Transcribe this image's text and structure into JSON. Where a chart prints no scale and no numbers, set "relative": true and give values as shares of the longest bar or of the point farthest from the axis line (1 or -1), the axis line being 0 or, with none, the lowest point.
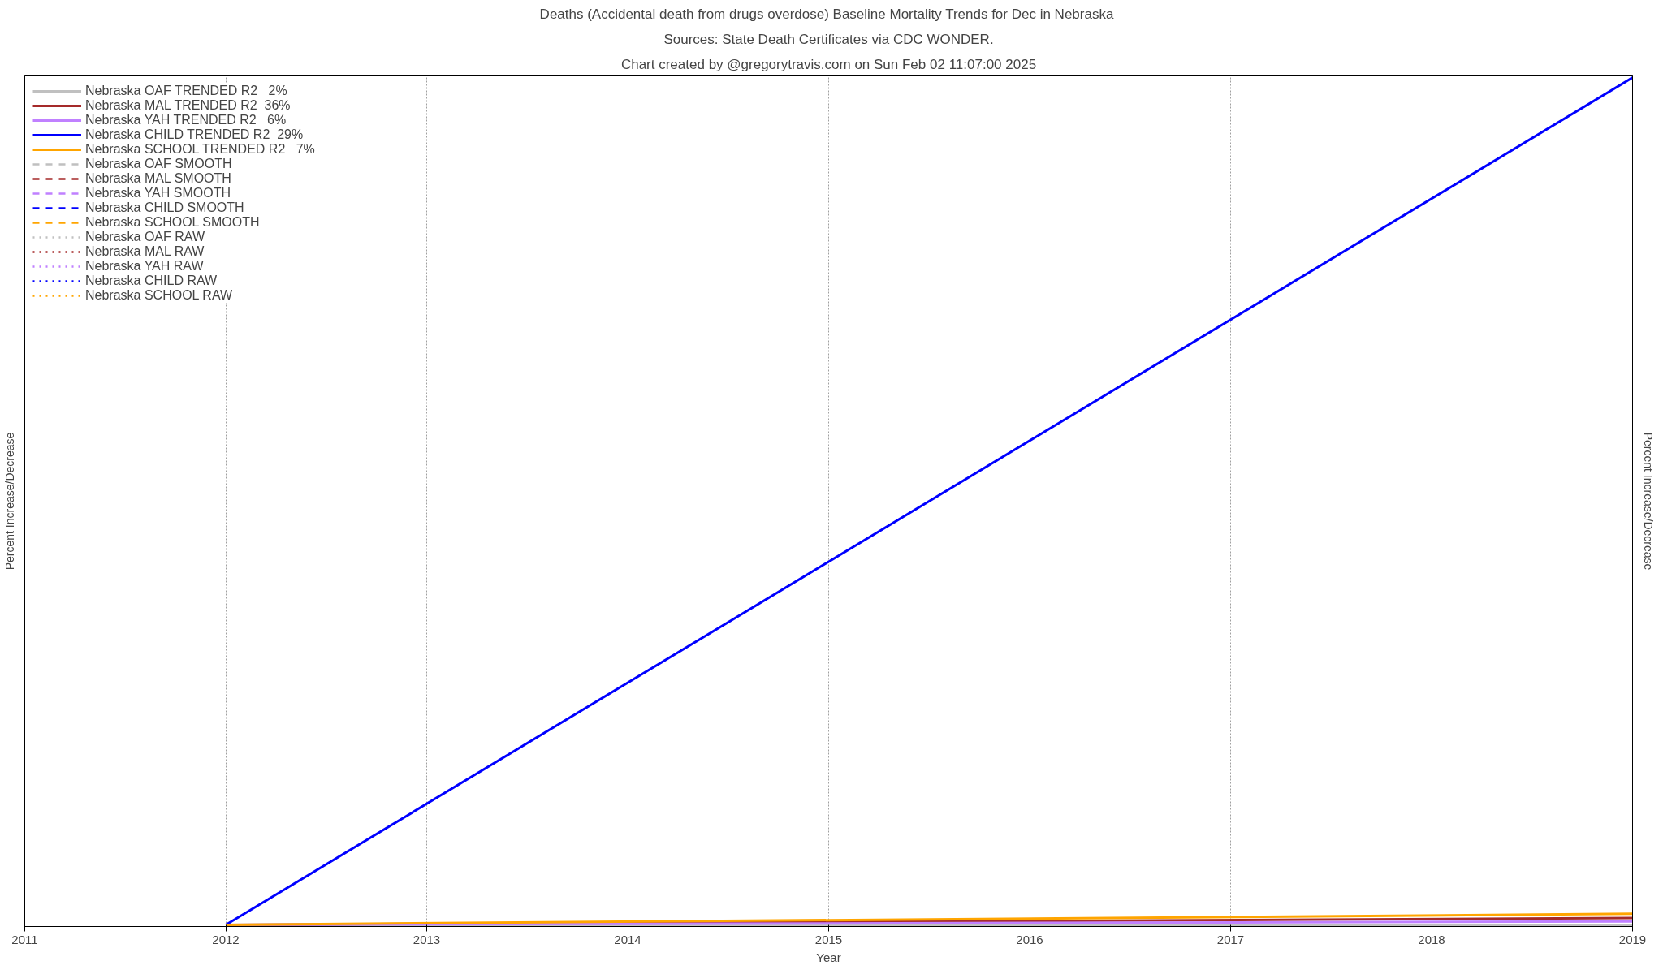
{
  "chart_data": {
    "type": "line",
    "title": "Deaths (Accidental death from drugs overdose)  Baseline Mortality Trends for Dec in Nebraska",
    "subtitle": "Sources: State Death Certificates via CDC WONDER.",
    "annotations": [
      "Chart created by @gregorytravis.com on Sun Feb 02 11:07:00 2025"
    ],
    "xlabel": "Year",
    "ylabel": "Percent Increase/Decrease",
    "y2label": "Percent Increase/Decrease",
    "relative": true,
    "x": [
      2012,
      2019
    ],
    "xlim": [
      2011,
      2019
    ],
    "xticks": [
      2011,
      2012,
      2013,
      2014,
      2015,
      2016,
      2017,
      2018,
      2019
    ],
    "grid": "x",
    "legend": "top left",
    "series": [
      {
        "name": "Nebraska OAF TRENDED R2   2%",
        "color": "#c0c0c0",
        "values": [
          0,
          0
        ],
        "line_style": "solid"
      },
      {
        "name": "Nebraska MAL TRENDED R2  36%",
        "color": "#a52a2a",
        "values": [
          0,
          0.008
        ],
        "line_style": "solid"
      },
      {
        "name": "Nebraska YAH TRENDED R2   6%",
        "color": "#c080ff",
        "values": [
          0,
          0.004
        ],
        "line_style": "solid"
      },
      {
        "name": "Nebraska CHILD TRENDED R2  29%",
        "color": "#0000ff",
        "values": [
          0,
          1
        ],
        "line_style": "solid"
      },
      {
        "name": "Nebraska SCHOOL TRENDED R2   7%",
        "color": "#ffa500",
        "values": [
          0,
          0.013
        ],
        "line_style": "solid"
      },
      {
        "name": "Nebraska OAF SMOOTH",
        "color": "#c0c0c0",
        "values": [
          null,
          null
        ],
        "line_style": "dashed"
      },
      {
        "name": "Nebraska MAL SMOOTH",
        "color": "#a52a2a",
        "values": [
          null,
          null
        ],
        "line_style": "dashed"
      },
      {
        "name": "Nebraska YAH SMOOTH",
        "color": "#c080ff",
        "values": [
          null,
          null
        ],
        "line_style": "dashed"
      },
      {
        "name": "Nebraska CHILD SMOOTH",
        "color": "#0000ff",
        "values": [
          null,
          null
        ],
        "line_style": "dashed"
      },
      {
        "name": "Nebraska SCHOOL SMOOTH",
        "color": "#ffa500",
        "values": [
          null,
          null
        ],
        "line_style": "dashed"
      },
      {
        "name": "Nebraska OAF RAW",
        "color": "#c0c0c0",
        "values": [
          null,
          null
        ],
        "line_style": "dotted"
      },
      {
        "name": "Nebraska MAL RAW",
        "color": "#a52a2a",
        "values": [
          null,
          null
        ],
        "line_style": "dotted"
      },
      {
        "name": "Nebraska YAH RAW",
        "color": "#c080ff",
        "values": [
          null,
          null
        ],
        "line_style": "dotted"
      },
      {
        "name": "Nebraska CHILD RAW",
        "color": "#0000ff",
        "values": [
          null,
          null
        ],
        "line_style": "dotted"
      },
      {
        "name": "Nebraska SCHOOL RAW",
        "color": "#ffa500",
        "values": [
          null,
          null
        ],
        "line_style": "dotted"
      }
    ]
  }
}
